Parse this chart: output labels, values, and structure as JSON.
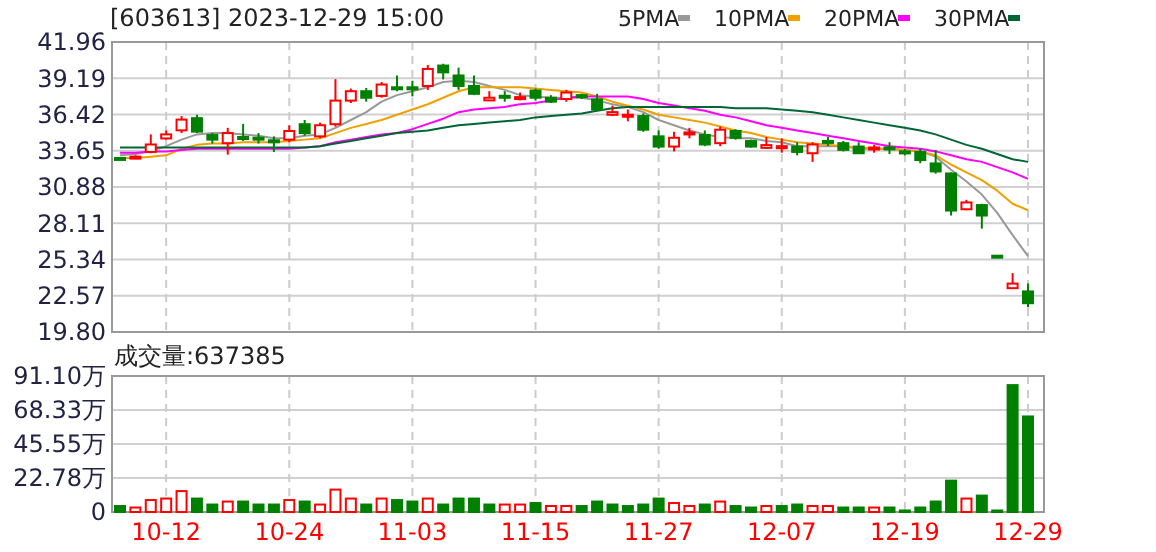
{
  "chart_data": [
    {
      "type": "candlestick",
      "title": "[603613] 2023-12-29 15:00",
      "categories": [
        null,
        null,
        null,
        null,
        null,
        null,
        null,
        null,
        null,
        null,
        null,
        null,
        null,
        null,
        null,
        null,
        null,
        null,
        null,
        null,
        null,
        null,
        null,
        null,
        null,
        null,
        null,
        null,
        null,
        null,
        null,
        null,
        null,
        null,
        null,
        null,
        null,
        null,
        null,
        null,
        null,
        null,
        null,
        null,
        null,
        null,
        null,
        null,
        null,
        null,
        null,
        null,
        null,
        null,
        null,
        null,
        null,
        null,
        null,
        null
      ],
      "ohlc": [
        [
          33.1,
          33.15,
          33.0,
          33.05
        ],
        [
          33.15,
          33.3,
          33.1,
          33.2
        ],
        [
          33.56,
          34.9,
          33.46,
          34.13
        ],
        [
          34.59,
          35.2,
          34.49,
          34.9
        ],
        [
          35.21,
          36.3,
          35.0,
          36.03
        ],
        [
          36.14,
          36.4,
          35.0,
          35.11
        ],
        [
          34.85,
          35.0,
          34.2,
          34.5
        ],
        [
          34.23,
          35.4,
          33.35,
          35.0
        ],
        [
          34.7,
          35.7,
          34.4,
          34.6
        ],
        [
          34.65,
          35.0,
          34.2,
          34.6
        ],
        [
          34.45,
          34.75,
          33.56,
          34.35
        ],
        [
          34.5,
          35.6,
          34.3,
          35.16
        ],
        [
          35.68,
          36.0,
          34.8,
          35.0
        ],
        [
          34.75,
          35.8,
          34.6,
          35.6
        ],
        [
          35.68,
          39.12,
          35.5,
          37.48
        ],
        [
          37.48,
          38.4,
          37.3,
          38.2
        ],
        [
          38.2,
          38.45,
          37.4,
          37.7
        ],
        [
          37.84,
          38.9,
          37.7,
          38.71
        ],
        [
          38.5,
          39.4,
          38.2,
          38.4
        ],
        [
          38.5,
          39.0,
          37.8,
          38.4
        ],
        [
          38.6,
          40.2,
          38.3,
          39.9
        ],
        [
          40.16,
          40.3,
          39.1,
          39.64
        ],
        [
          39.4,
          40.0,
          38.3,
          38.6
        ],
        [
          38.6,
          39.4,
          37.9,
          38.0
        ],
        [
          37.5,
          38.2,
          37.45,
          37.7
        ],
        [
          37.85,
          38.2,
          37.4,
          37.75
        ],
        [
          37.65,
          38.1,
          37.5,
          37.75
        ],
        [
          38.25,
          38.4,
          37.5,
          37.7
        ],
        [
          37.7,
          37.9,
          37.3,
          37.4
        ],
        [
          37.6,
          38.3,
          37.4,
          38.1
        ],
        [
          37.9,
          38.0,
          37.6,
          37.75
        ],
        [
          37.58,
          38.0,
          36.7,
          36.8
        ],
        [
          36.4,
          37.1,
          36.3,
          36.6
        ],
        [
          36.3,
          36.8,
          35.9,
          36.4
        ],
        [
          36.3,
          36.5,
          35.1,
          35.26
        ],
        [
          34.75,
          35.2,
          33.8,
          33.97
        ],
        [
          33.97,
          35.1,
          33.6,
          34.64
        ],
        [
          34.95,
          35.4,
          34.6,
          35.05
        ],
        [
          34.85,
          35.2,
          34.0,
          34.13
        ],
        [
          34.23,
          35.5,
          34.0,
          35.26
        ],
        [
          35.16,
          35.3,
          34.5,
          34.64
        ],
        [
          34.39,
          34.5,
          33.9,
          33.97
        ],
        [
          33.87,
          34.7,
          33.8,
          34.08
        ],
        [
          33.92,
          34.6,
          33.5,
          34.0
        ],
        [
          33.97,
          34.3,
          33.3,
          33.56
        ],
        [
          33.46,
          34.3,
          32.8,
          34.13
        ],
        [
          34.4,
          34.7,
          34.0,
          34.35
        ],
        [
          34.23,
          34.4,
          33.6,
          33.72
        ],
        [
          33.97,
          34.3,
          33.4,
          33.46
        ],
        [
          33.85,
          34.1,
          33.5,
          33.9
        ],
        [
          33.9,
          34.3,
          33.4,
          33.85
        ],
        [
          33.6,
          33.8,
          33.3,
          33.55
        ],
        [
          33.56,
          33.8,
          32.7,
          32.94
        ],
        [
          32.68,
          33.7,
          31.9,
          32.07
        ],
        [
          31.91,
          32.0,
          28.7,
          29.08
        ],
        [
          29.18,
          29.9,
          29.1,
          29.7
        ],
        [
          29.5,
          29.6,
          27.7,
          28.7
        ],
        [
          25.63,
          25.65,
          25.58,
          25.6
        ],
        [
          23.15,
          24.3,
          23.1,
          23.5
        ],
        [
          22.9,
          23.5,
          21.7,
          22.0
        ]
      ],
      "colors": [
        "#008000",
        "#ff0000",
        "#ff0000",
        "#ff0000",
        "#ff0000",
        "#008000",
        "#008000",
        "#ff0000",
        "#008000",
        "#008000",
        "#008000",
        "#ff0000",
        "#008000",
        "#ff0000",
        "#ff0000",
        "#ff0000",
        "#008000",
        "#ff0000",
        "#008000",
        "#008000",
        "#ff0000",
        "#008000",
        "#008000",
        "#008000",
        "#ff0000",
        "#008000",
        "#ff0000",
        "#008000",
        "#008000",
        "#ff0000",
        "#008000",
        "#008000",
        "#ff0000",
        "#ff0000",
        "#008000",
        "#008000",
        "#ff0000",
        "#ff0000",
        "#008000",
        "#ff0000",
        "#008000",
        "#008000",
        "#ff0000",
        "#ff0000",
        "#008000",
        "#ff0000",
        "#008000",
        "#008000",
        "#008000",
        "#ff0000",
        "#008000",
        "#008000",
        "#008000",
        "#008000",
        "#008000",
        "#ff0000",
        "#008000",
        "#008000",
        "#ff0000",
        "#008000"
      ],
      "series": [
        {
          "type": "line",
          "name": "5PMA",
          "color": "#999999",
          "values": [
            33.3,
            33.4,
            33.6,
            34.0,
            34.5,
            34.9,
            35.0,
            35.0,
            34.9,
            34.8,
            34.6,
            34.6,
            34.8,
            34.9,
            35.4,
            36.0,
            36.6,
            37.4,
            37.9,
            38.2,
            38.5,
            38.9,
            39.0,
            38.9,
            38.6,
            38.3,
            37.9,
            37.8,
            37.7,
            37.7,
            37.7,
            37.5,
            37.2,
            37.0,
            36.6,
            36.0,
            35.6,
            35.2,
            34.9,
            34.7,
            34.6,
            34.6,
            34.4,
            34.3,
            34.0,
            34.0,
            34.0,
            34.0,
            33.8,
            33.8,
            33.8,
            33.7,
            33.6,
            33.2,
            32.2,
            31.3,
            30.3,
            28.9,
            27.2,
            25.6
          ]
        },
        {
          "type": "line",
          "name": "10PMA",
          "color": "#f0a000",
          "values": [
            33.1,
            33.1,
            33.2,
            33.3,
            33.8,
            34.1,
            34.2,
            34.2,
            34.3,
            34.3,
            34.3,
            34.4,
            34.5,
            34.6,
            35.0,
            35.4,
            35.7,
            36.0,
            36.4,
            36.8,
            37.2,
            37.7,
            38.2,
            38.5,
            38.5,
            38.5,
            38.5,
            38.4,
            38.3,
            38.2,
            38.1,
            37.8,
            37.4,
            37.1,
            36.8,
            36.4,
            36.2,
            36.0,
            35.8,
            35.5,
            35.2,
            35.0,
            34.7,
            34.5,
            34.3,
            34.2,
            34.1,
            34.0,
            33.9,
            33.8,
            33.8,
            33.7,
            33.6,
            33.3,
            32.6,
            32.0,
            31.4,
            30.6,
            29.6,
            29.1
          ]
        },
        {
          "type": "line",
          "name": "20PMA",
          "color": "#ff00ff",
          "values": [
            33.5,
            33.5,
            33.6,
            33.6,
            33.7,
            33.8,
            33.8,
            33.8,
            33.8,
            33.8,
            33.8,
            33.8,
            33.9,
            34.0,
            34.3,
            34.5,
            34.7,
            34.9,
            35.0,
            35.3,
            35.7,
            36.1,
            36.6,
            36.8,
            36.9,
            37.0,
            37.2,
            37.3,
            37.5,
            37.7,
            37.8,
            37.8,
            37.8,
            37.8,
            37.6,
            37.3,
            37.1,
            36.9,
            36.7,
            36.4,
            36.2,
            35.9,
            35.6,
            35.4,
            35.2,
            35.0,
            34.8,
            34.6,
            34.4,
            34.2,
            34.0,
            33.9,
            33.8,
            33.6,
            33.3,
            33.0,
            32.8,
            32.4,
            32.0,
            31.5
          ]
        },
        {
          "type": "line",
          "name": "30PMA",
          "color": "#006633",
          "values": [
            33.9,
            33.9,
            33.9,
            33.9,
            33.9,
            33.9,
            33.9,
            33.9,
            33.9,
            33.9,
            33.9,
            33.9,
            33.9,
            34.0,
            34.2,
            34.4,
            34.6,
            34.8,
            35.0,
            35.1,
            35.2,
            35.4,
            35.6,
            35.7,
            35.8,
            35.9,
            36.0,
            36.2,
            36.3,
            36.4,
            36.5,
            36.7,
            36.9,
            37.0,
            37.0,
            37.0,
            37.0,
            37.0,
            37.0,
            37.0,
            36.9,
            36.9,
            36.9,
            36.8,
            36.7,
            36.6,
            36.4,
            36.2,
            36.0,
            35.8,
            35.6,
            35.4,
            35.2,
            34.9,
            34.5,
            34.1,
            33.8,
            33.4,
            33.0,
            32.8
          ]
        }
      ],
      "ylim": [
        19.8,
        41.96
      ],
      "yticks": [
        {
          "value": 19.8,
          "label": "19.80"
        },
        22.57,
        25.34,
        28.11,
        30.88,
        33.65,
        36.42,
        39.19,
        41.96
      ],
      "grid": true,
      "legend": "top right",
      "tick_labels": "y"
    },
    {
      "type": "bar",
      "title": "成交量:637385",
      "categories": [
        null,
        null,
        null,
        "10-12",
        null,
        null,
        null,
        null,
        null,
        null,
        null,
        "10-24",
        null,
        null,
        null,
        null,
        null,
        null,
        null,
        "11-03",
        null,
        null,
        null,
        null,
        null,
        null,
        null,
        "11-15",
        null,
        null,
        null,
        null,
        null,
        null,
        null,
        "11-27",
        null,
        null,
        null,
        null,
        null,
        null,
        null,
        "12-07",
        null,
        null,
        null,
        null,
        null,
        null,
        null,
        "12-19",
        null,
        null,
        null,
        null,
        null,
        null,
        null,
        "12-29"
      ],
      "values": [
        4,
        3,
        8,
        9,
        14,
        9,
        5,
        7,
        7,
        5,
        5,
        8,
        7,
        5,
        15,
        9,
        5,
        9,
        8,
        7,
        9,
        5,
        9,
        9,
        5,
        5,
        5,
        6,
        4,
        4,
        4,
        7,
        5,
        4,
        5,
        9,
        6,
        4,
        5,
        7,
        4,
        3,
        4,
        4,
        5,
        4,
        4,
        3,
        3,
        3,
        3,
        1,
        3,
        7,
        21,
        9,
        11,
        1,
        85,
        64
      ],
      "colors": [
        "#008000",
        "#ff0000",
        "#ff0000",
        "#ff0000",
        "#ff0000",
        "#008000",
        "#008000",
        "#ff0000",
        "#008000",
        "#008000",
        "#008000",
        "#ff0000",
        "#008000",
        "#ff0000",
        "#ff0000",
        "#ff0000",
        "#008000",
        "#ff0000",
        "#008000",
        "#008000",
        "#ff0000",
        "#008000",
        "#008000",
        "#008000",
        "#008000",
        "#ff0000",
        "#ff0000",
        "#008000",
        "#ff0000",
        "#ff0000",
        "#008000",
        "#008000",
        "#008000",
        "#008000",
        "#008000",
        "#008000",
        "#ff0000",
        "#ff0000",
        "#008000",
        "#ff0000",
        "#008000",
        "#008000",
        "#ff0000",
        "#008000",
        "#008000",
        "#ff0000",
        "#ff0000",
        "#008000",
        "#008000",
        "#ff0000",
        "#008000",
        "#008000",
        "#008000",
        "#008000",
        "#008000",
        "#ff0000",
        "#008000",
        "#008000",
        "#008000",
        "#008000"
      ],
      "ylim": [
        0,
        91.1
      ],
      "yticks": [
        0,
        {
          "value": 22.78,
          "label": "22.78万"
        },
        {
          "value": 45.55,
          "label": "45.55万"
        },
        {
          "value": 68.33,
          "label": "68.33万"
        },
        {
          "value": 91.1,
          "label": "91.10万"
        }
      ],
      "grid": true
    }
  ]
}
